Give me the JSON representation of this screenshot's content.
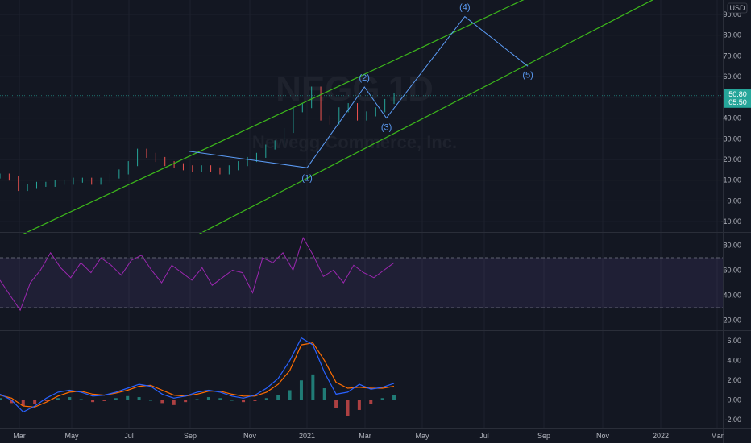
{
  "header": {
    "currency": "USD",
    "watermark_symbol": "NEGG",
    "watermark_interval": "1D",
    "watermark_name": "Newegg Commerce, Inc."
  },
  "price_tag": {
    "price": "50.80",
    "countdown": "05:50",
    "color": "#26a69a"
  },
  "colors": {
    "background": "#131722",
    "channel": "#3cb81b",
    "wave": "#5b9cf6",
    "up": "#26a69a",
    "down": "#ef5350",
    "rsi": "#9c27b0",
    "macd": "#2962ff",
    "signal": "#ff6d00"
  },
  "chart_data": [
    {
      "type": "line",
      "name": "price",
      "x_ticks": [
        "Mar",
        "May",
        "Jul",
        "Sep",
        "Nov",
        "2021",
        "Mar",
        "May",
        "Jul",
        "Sep",
        "Nov",
        "2022",
        "Mar"
      ],
      "y_ticks": [
        "90.00",
        "80.00",
        "70.00",
        "60.00",
        "50.00",
        "40.00",
        "30.00",
        "20.00",
        "10.00",
        "0.00",
        "-10.00"
      ],
      "ylim": [
        -15,
        97
      ],
      "series": [
        {
          "values": [
            12,
            11,
            6,
            7,
            8,
            8,
            9,
            9,
            10,
            10,
            9,
            10,
            12,
            14,
            18,
            24,
            22,
            20,
            18,
            17,
            16,
            15,
            16,
            15,
            14,
            16,
            18,
            20,
            22,
            26,
            28,
            34,
            44,
            46,
            54,
            40,
            38,
            44,
            46,
            40,
            42,
            44,
            48,
            50.8
          ]
        }
      ],
      "wave_labels": [
        "(1)",
        "(2)",
        "(3)",
        "(4)",
        "(5)"
      ],
      "wave_points": [
        {
          "date": "2020-08-25",
          "value": 24
        },
        {
          "date": "2020-12-27",
          "value": 16
        },
        {
          "date": "2021-02-25",
          "value": 55
        },
        {
          "date": "2021-03-20",
          "value": 40
        },
        {
          "date": "2021-06-10",
          "value": 89
        },
        {
          "date": "2021-08-15",
          "value": 65
        }
      ],
      "channel": [
        {
          "from": {
            "date": "2020-03-05",
            "value": -16
          },
          "to": {
            "date": "2022-01-05",
            "value": 129
          }
        },
        {
          "from": {
            "date": "2020-09-05",
            "value": -16
          },
          "to": {
            "date": "2022-01-05",
            "value": 100
          }
        }
      ],
      "last_value": 50.8
    },
    {
      "type": "line",
      "name": "rsi",
      "y_ticks": [
        "80.00",
        "60.00",
        "40.00",
        "20.00"
      ],
      "ylim": [
        12,
        90
      ],
      "bands": [
        30,
        70
      ],
      "series": [
        {
          "values": [
            52,
            40,
            28,
            50,
            60,
            74,
            62,
            54,
            66,
            58,
            70,
            64,
            56,
            68,
            72,
            60,
            50,
            64,
            58,
            52,
            62,
            48,
            54,
            60,
            58,
            42,
            70,
            66,
            74,
            60,
            86,
            72,
            55,
            60,
            50,
            64,
            58,
            54,
            60,
            66
          ]
        }
      ]
    },
    {
      "type": "bar",
      "name": "macd",
      "y_ticks": [
        "6.00",
        "4.00",
        "2.00",
        "0.00",
        "-2.00"
      ],
      "ylim": [
        -2.8,
        7
      ],
      "series": [
        {
          "name": "histogram",
          "values": [
            0.2,
            -0.3,
            -0.6,
            -0.4,
            -0.1,
            0.2,
            0.3,
            0.1,
            -0.2,
            -0.1,
            0.2,
            0.4,
            0.3,
            0.0,
            -0.3,
            -0.5,
            -0.2,
            0.1,
            0.3,
            0.2,
            0.0,
            -0.2,
            -0.1,
            0.2,
            0.5,
            1.0,
            2.0,
            2.6,
            1.2,
            -0.8,
            -1.6,
            -1.0,
            -0.4,
            0.2,
            0.5
          ]
        },
        {
          "name": "macd",
          "values": [
            0.6,
            0.0,
            -1.2,
            -0.6,
            0.2,
            0.8,
            1.0,
            0.8,
            0.4,
            0.5,
            0.8,
            1.2,
            1.6,
            1.4,
            0.6,
            0.2,
            0.4,
            0.8,
            1.0,
            0.8,
            0.4,
            0.2,
            0.5,
            1.2,
            2.2,
            4.0,
            6.3,
            5.6,
            2.8,
            0.6,
            0.8,
            1.6,
            1.1,
            1.3,
            1.7
          ]
        },
        {
          "name": "signal",
          "values": [
            0.5,
            0.2,
            -0.6,
            -0.7,
            -0.2,
            0.4,
            0.8,
            0.9,
            0.6,
            0.5,
            0.7,
            1.0,
            1.4,
            1.5,
            1.0,
            0.5,
            0.4,
            0.6,
            0.9,
            0.9,
            0.6,
            0.4,
            0.4,
            0.8,
            1.6,
            3.0,
            5.6,
            5.8,
            4.0,
            1.8,
            1.2,
            1.3,
            1.2,
            1.2,
            1.4
          ]
        }
      ]
    }
  ]
}
